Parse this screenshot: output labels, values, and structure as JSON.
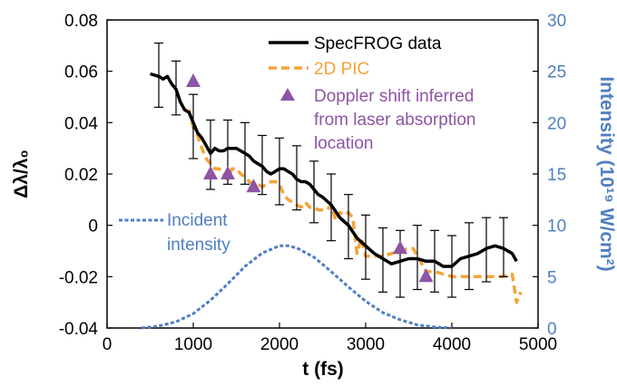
{
  "chart_data": {
    "type": "line",
    "xlabel": "t (fs)",
    "ylabel_left": "Δλ/λ₀",
    "ylabel_right": "Intensity (10¹⁹ W/cm²)",
    "xlim": [
      0,
      5000
    ],
    "ylim_left": [
      -0.04,
      0.08
    ],
    "ylim_right": [
      0,
      30
    ],
    "x_ticks": [
      "0",
      "1000",
      "2000",
      "3000",
      "4000",
      "5000"
    ],
    "y_left_ticks": [
      "-0.04",
      "-0.02",
      "0",
      "0.02",
      "0.04",
      "0.06",
      "0.08"
    ],
    "y_right_ticks": [
      "0",
      "5",
      "10",
      "15",
      "20",
      "25",
      "30"
    ],
    "legend": {
      "specfrog": "SpecFROG data",
      "pic": "2D PIC",
      "doppler_line1": "Doppler shift inferred",
      "doppler_line2": "from laser absorption",
      "doppler_line3": "location"
    },
    "annotation": {
      "line1": "Incident",
      "line2": "intensity"
    },
    "colors": {
      "specfrog": "#000000",
      "pic": "#f3a43b",
      "doppler": "#8e54a5",
      "intensity": "#4f7fc0"
    },
    "series": [
      {
        "name": "SpecFROG data",
        "x": [
          500,
          600,
          650,
          700,
          750,
          800,
          850,
          900,
          950,
          1000,
          1050,
          1100,
          1150,
          1200,
          1250,
          1300,
          1350,
          1400,
          1450,
          1500,
          1550,
          1600,
          1650,
          1700,
          1750,
          1800,
          1850,
          1900,
          1950,
          2000,
          2050,
          2100,
          2150,
          2200,
          2250,
          2300,
          2350,
          2400,
          2450,
          2500,
          2600,
          2700,
          2800,
          2900,
          3000,
          3100,
          3200,
          3300,
          3400,
          3500,
          3600,
          3700,
          3800,
          3900,
          4000,
          4100,
          4200,
          4300,
          4400,
          4500,
          4600,
          4700,
          4750
        ],
        "y": [
          0.059,
          0.058,
          0.057,
          0.058,
          0.055,
          0.053,
          0.048,
          0.045,
          0.044,
          0.04,
          0.036,
          0.034,
          0.031,
          0.028,
          0.03,
          0.029,
          0.029,
          0.03,
          0.03,
          0.03,
          0.029,
          0.028,
          0.027,
          0.025,
          0.024,
          0.023,
          0.021,
          0.02,
          0.021,
          0.022,
          0.022,
          0.021,
          0.02,
          0.018,
          0.017,
          0.017,
          0.016,
          0.014,
          0.012,
          0.011,
          0.008,
          0.003,
          0.0,
          -0.005,
          -0.008,
          -0.011,
          -0.013,
          -0.015,
          -0.014,
          -0.013,
          -0.013,
          -0.014,
          -0.014,
          -0.016,
          -0.016,
          -0.013,
          -0.012,
          -0.011,
          -0.009,
          -0.008,
          -0.009,
          -0.011,
          -0.014
        ],
        "error_x": [
          600,
          800,
          1000,
          1200,
          1400,
          1600,
          1800,
          2000,
          2200,
          2400,
          2600,
          2800,
          3000,
          3200,
          3400,
          3600,
          3800,
          4000,
          4200,
          4400,
          4600
        ],
        "error_y": [
          0.058,
          0.054,
          0.039,
          0.028,
          0.029,
          0.028,
          0.023,
          0.022,
          0.019,
          0.013,
          0.008,
          0.0,
          -0.008,
          -0.013,
          -0.014,
          -0.013,
          -0.014,
          -0.016,
          -0.012,
          -0.009,
          -0.009
        ],
        "error_lo": [
          0.046,
          0.043,
          0.026,
          0.014,
          0.016,
          0.016,
          0.012,
          0.008,
          0.006,
          0.001,
          -0.006,
          -0.013,
          -0.021,
          -0.026,
          -0.028,
          -0.025,
          -0.026,
          -0.028,
          -0.025,
          -0.022,
          -0.02
        ],
        "error_hi": [
          0.071,
          0.064,
          0.051,
          0.041,
          0.041,
          0.04,
          0.035,
          0.034,
          0.031,
          0.025,
          0.02,
          0.012,
          0.004,
          -0.001,
          -0.002,
          0.0,
          -0.002,
          -0.004,
          0.001,
          0.003,
          0.003
        ]
      },
      {
        "name": "2D PIC",
        "x": [
          950,
          1000,
          1050,
          1100,
          1150,
          1200,
          1250,
          1300,
          1350,
          1400,
          1450,
          1500,
          1550,
          1600,
          1650,
          1700,
          1750,
          1800,
          1850,
          1900,
          1950,
          2000,
          2050,
          2100,
          2150,
          2200,
          2250,
          2300,
          2350,
          2400,
          2450,
          2500,
          2550,
          2600,
          2650,
          2700,
          2750,
          2800,
          2850,
          2900,
          2950,
          3000,
          3100,
          3200,
          3300,
          3400,
          3500,
          3550,
          3600,
          3700,
          3800,
          3900,
          4000,
          4200,
          4400,
          4600,
          4700,
          4750,
          4800
        ],
        "y": [
          0.045,
          0.038,
          0.035,
          0.03,
          0.026,
          0.024,
          0.022,
          0.022,
          0.02,
          0.018,
          0.022,
          0.022,
          0.02,
          0.019,
          0.017,
          0.016,
          0.016,
          0.015,
          0.016,
          0.017,
          0.017,
          0.016,
          0.012,
          0.01,
          0.009,
          0.008,
          0.007,
          0.009,
          0.007,
          0.007,
          0.006,
          0.006,
          0.006,
          0.008,
          0.002,
          0.005,
          0.004,
          0.005,
          0.003,
          -0.011,
          -0.005,
          -0.012,
          -0.012,
          -0.012,
          -0.011,
          -0.01,
          -0.009,
          -0.009,
          -0.012,
          -0.018,
          -0.018,
          -0.019,
          -0.02,
          -0.02,
          -0.02,
          -0.02,
          -0.019,
          -0.03,
          -0.026
        ]
      },
      {
        "name": "Doppler shift inferred from laser absorption location",
        "x": [
          1000,
          1200,
          1400,
          1700,
          3400,
          3700
        ],
        "y": [
          0.056,
          0.02,
          0.02,
          0.015,
          -0.009,
          -0.02
        ]
      },
      {
        "name": "Incident intensity",
        "x": [
          400,
          600,
          800,
          1000,
          1200,
          1400,
          1600,
          1800,
          2000,
          2100,
          2200,
          2400,
          2600,
          2800,
          3000,
          3200,
          3400,
          3600,
          3800,
          4000
        ],
        "y": [
          0.0,
          0.2,
          0.6,
          1.4,
          2.7,
          4.3,
          6.0,
          7.3,
          8.0,
          8.0,
          7.8,
          6.9,
          5.5,
          4.0,
          2.6,
          1.5,
          0.8,
          0.3,
          0.1,
          0.0
        ],
        "axis": "right"
      }
    ]
  }
}
